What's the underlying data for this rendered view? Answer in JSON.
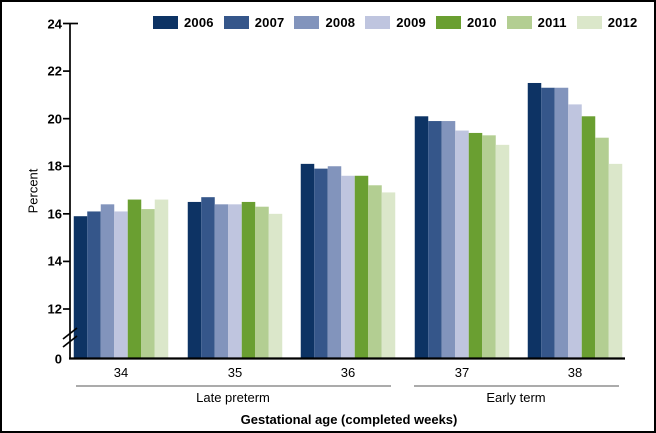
{
  "figure": {
    "background": "#ffffff",
    "border_color": "#000000",
    "axis_color": "#000000",
    "bracket_line_color": "#8f8f8f"
  },
  "chart_data": {
    "type": "bar",
    "title": "",
    "ylabel": "Percent",
    "xlabel": "Gestational age (completed weeks)",
    "categories": [
      "34",
      "35",
      "36",
      "37",
      "38"
    ],
    "category_groups": [
      {
        "label": "Late preterm",
        "from_index": 0,
        "to_index": 2
      },
      {
        "label": "Early term",
        "from_index": 3,
        "to_index": 4
      }
    ],
    "ylim": [
      12,
      24
    ],
    "y_ticks": [
      24,
      22,
      20,
      18,
      16,
      14,
      12,
      0
    ],
    "axis_break_between": [
      0,
      12
    ],
    "grid": false,
    "legend_position": "top",
    "legend_entries": [
      "2006",
      "2007",
      "2008",
      "2009",
      "2010",
      "2011",
      "2012"
    ],
    "series": [
      {
        "name": "2006",
        "color": "#0d3364",
        "values": [
          15.9,
          16.5,
          18.1,
          20.1,
          21.5
        ]
      },
      {
        "name": "2007",
        "color": "#35568a",
        "values": [
          16.1,
          16.7,
          17.9,
          19.9,
          21.3
        ]
      },
      {
        "name": "2008",
        "color": "#8294bc",
        "values": [
          16.4,
          16.4,
          18.0,
          19.9,
          21.3
        ]
      },
      {
        "name": "2009",
        "color": "#bfc5df",
        "values": [
          16.1,
          16.4,
          17.6,
          19.5,
          20.6
        ]
      },
      {
        "name": "2010",
        "color": "#6a9f31",
        "values": [
          16.6,
          16.5,
          17.6,
          19.4,
          20.1
        ]
      },
      {
        "name": "2011",
        "color": "#b3ce92",
        "values": [
          16.2,
          16.3,
          17.2,
          19.3,
          19.2
        ]
      },
      {
        "name": "2012",
        "color": "#dbe7ca",
        "values": [
          16.6,
          16.0,
          16.9,
          18.9,
          18.1
        ]
      }
    ]
  }
}
